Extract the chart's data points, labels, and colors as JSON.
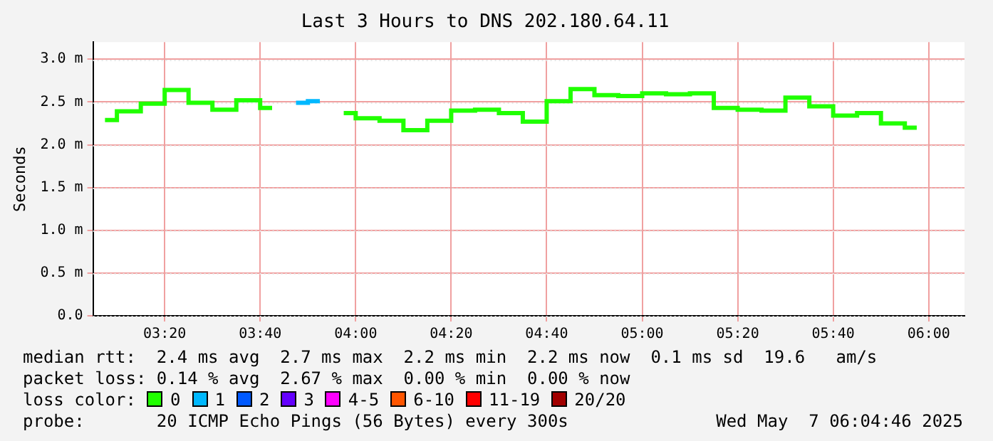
{
  "chart_data": {
    "type": "step",
    "title": "Last 3 Hours to DNS 202.180.64.11",
    "ylabel": "Seconds",
    "x": [
      3.125,
      3.2083,
      3.2917,
      3.375,
      3.4583,
      3.5417,
      3.625,
      3.7083,
      3.7917,
      3.875,
      3.9583,
      4.0417,
      4.125,
      4.2083,
      4.2917,
      4.375,
      4.4583,
      4.5417,
      4.625,
      4.7083,
      4.7917,
      4.875,
      4.9583,
      5.0417,
      5.125,
      5.2083,
      5.2917,
      5.375,
      5.4583,
      5.5417,
      5.625,
      5.7083,
      5.7917,
      5.875,
      5.9583
    ],
    "xlim": [
      3.0833,
      6.125
    ],
    "xticks": [
      {
        "value": 3.3333,
        "label": "03:20"
      },
      {
        "value": 3.6667,
        "label": "03:40"
      },
      {
        "value": 4,
        "label": "04:00"
      },
      {
        "value": 4.3333,
        "label": "04:20"
      },
      {
        "value": 4.6667,
        "label": "04:40"
      },
      {
        "value": 5,
        "label": "05:00"
      },
      {
        "value": 5.3333,
        "label": "05:20"
      },
      {
        "value": 5.6667,
        "label": "05:40"
      },
      {
        "value": 6,
        "label": "06:00"
      }
    ],
    "ylim": [
      0,
      3.2
    ],
    "yticks": [
      {
        "value": 0,
        "label": "0.0"
      },
      {
        "value": 0.5,
        "label": "0.5 m"
      },
      {
        "value": 1,
        "label": "1.0 m"
      },
      {
        "value": 1.5,
        "label": "1.5 m"
      },
      {
        "value": 2,
        "label": "2.0 m"
      },
      {
        "value": 2.5,
        "label": "2.5 m"
      },
      {
        "value": 3,
        "label": "3.0 m"
      }
    ],
    "grid": true,
    "legend": "bottom",
    "legend_title": "loss color:",
    "series": [
      {
        "name": "0",
        "color": "#20ff00",
        "values": [
          2.29,
          2.39,
          2.48,
          2.64,
          2.49,
          2.41,
          2.52,
          2.43,
          null,
          null,
          2.37,
          2.31,
          2.28,
          2.17,
          2.28,
          2.4,
          2.41,
          2.37,
          2.27,
          2.51,
          2.65,
          2.58,
          2.57,
          2.6,
          2.59,
          2.6,
          2.43,
          2.41,
          2.4,
          2.55,
          2.45,
          2.34,
          2.37,
          2.25,
          2.2
        ]
      },
      {
        "name": "1",
        "color": "#00b8ff",
        "values": [
          null,
          null,
          null,
          null,
          null,
          null,
          null,
          null,
          2.49,
          2.51,
          null,
          null,
          null,
          null,
          null,
          null,
          null,
          null,
          null,
          null,
          null,
          null,
          null,
          null,
          null,
          null,
          null,
          null,
          null,
          null,
          null,
          null,
          null,
          null,
          null
        ]
      },
      {
        "name": "2",
        "color": "#0059ff",
        "values": [
          null,
          null,
          null,
          null,
          null,
          null,
          null,
          null,
          null,
          null,
          null,
          null,
          null,
          null,
          null,
          null,
          null,
          null,
          null,
          null,
          null,
          null,
          null,
          null,
          null,
          null,
          null,
          null,
          null,
          null,
          null,
          null,
          null,
          null,
          null
        ]
      },
      {
        "name": "3",
        "color": "#6400ff",
        "values": [
          null,
          null,
          null,
          null,
          null,
          null,
          null,
          null,
          null,
          null,
          null,
          null,
          null,
          null,
          null,
          null,
          null,
          null,
          null,
          null,
          null,
          null,
          null,
          null,
          null,
          null,
          null,
          null,
          null,
          null,
          null,
          null,
          null,
          null,
          null
        ]
      },
      {
        "name": "4-5",
        "color": "#ff00ff",
        "values": [
          null,
          null,
          null,
          null,
          null,
          null,
          null,
          null,
          null,
          null,
          null,
          null,
          null,
          null,
          null,
          null,
          null,
          null,
          null,
          null,
          null,
          null,
          null,
          null,
          null,
          null,
          null,
          null,
          null,
          null,
          null,
          null,
          null,
          null,
          null
        ]
      },
      {
        "name": "6-10",
        "color": "#ff5500",
        "values": [
          null,
          null,
          null,
          null,
          null,
          null,
          null,
          null,
          null,
          null,
          null,
          null,
          null,
          null,
          null,
          null,
          null,
          null,
          null,
          null,
          null,
          null,
          null,
          null,
          null,
          null,
          null,
          null,
          null,
          null,
          null,
          null,
          null,
          null,
          null
        ]
      },
      {
        "name": "11-19",
        "color": "#ff0000",
        "values": [
          null,
          null,
          null,
          null,
          null,
          null,
          null,
          null,
          null,
          null,
          null,
          null,
          null,
          null,
          null,
          null,
          null,
          null,
          null,
          null,
          null,
          null,
          null,
          null,
          null,
          null,
          null,
          null,
          null,
          null,
          null,
          null,
          null,
          null,
          null
        ]
      },
      {
        "name": "20/20",
        "color": "#a10000",
        "values": [
          null,
          null,
          null,
          null,
          null,
          null,
          null,
          null,
          null,
          null,
          null,
          null,
          null,
          null,
          null,
          null,
          null,
          null,
          null,
          null,
          null,
          null,
          null,
          null,
          null,
          null,
          null,
          null,
          null,
          null,
          null,
          null,
          null,
          null,
          null
        ]
      }
    ],
    "annotations": [
      "median rtt:  2.4 ms avg  2.7 ms max  2.2 ms min  2.2 ms now  0.1 ms sd  19.6   am/s",
      "packet loss: 0.14 % avg  2.67 % max  0.00 % min  0.00 % now",
      "probe:       20 ICMP Echo Pings (56 Bytes) every 300s",
      "Wed May  7 06:04:46 2025"
    ]
  }
}
